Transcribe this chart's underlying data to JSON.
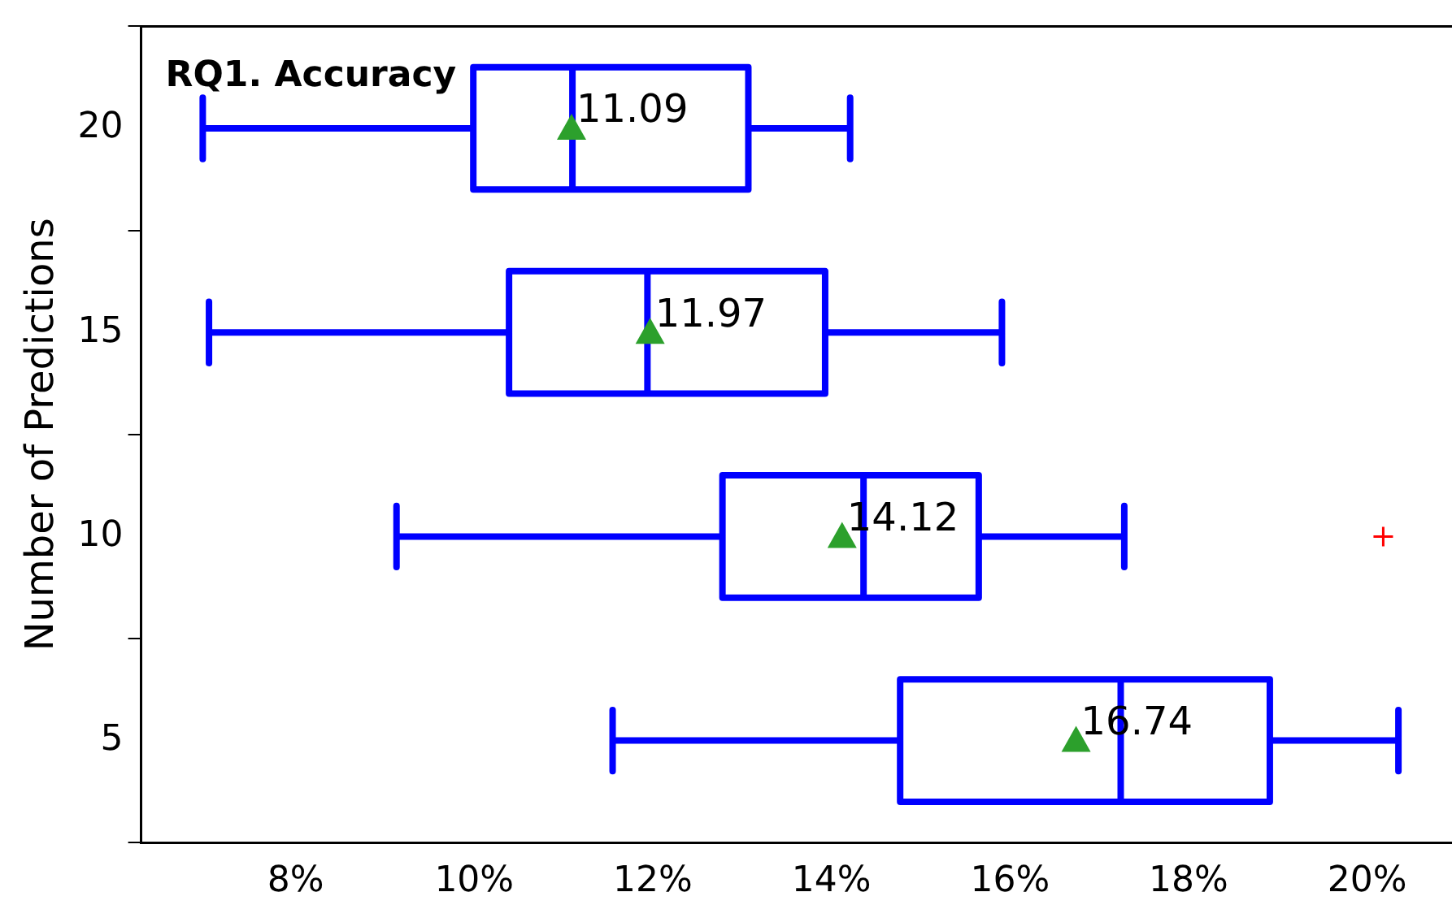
{
  "chart_data": {
    "type": "box",
    "orientation": "horizontal",
    "title": "RQ1. Accuracy",
    "ylabel": "Number of Predictions",
    "categories": [
      "20",
      "15",
      "10",
      "5"
    ],
    "xlim": [
      6.27,
      20.95
    ],
    "xticks": [
      {
        "value": 8,
        "label": "8%"
      },
      {
        "value": 10,
        "label": "10%"
      },
      {
        "value": 12,
        "label": "12%"
      },
      {
        "value": 14,
        "label": "14%"
      },
      {
        "value": 16,
        "label": "16%"
      },
      {
        "value": 18,
        "label": "18%"
      },
      {
        "value": 20,
        "label": "20%"
      }
    ],
    "grid": false,
    "legend": false,
    "series": [
      {
        "color": "#0000ff",
        "boxes": [
          {
            "low": 6.96,
            "q1": 9.99,
            "median": 11.1,
            "q3": 13.07,
            "high": 14.21,
            "mean": 11.09
          },
          {
            "low": 7.03,
            "q1": 10.39,
            "median": 11.94,
            "q3": 13.93,
            "high": 15.91,
            "mean": 11.97
          },
          {
            "low": 9.13,
            "q1": 12.78,
            "median": 14.36,
            "q3": 15.65,
            "high": 17.28,
            "mean": 14.12,
            "outliers": [
              20.18
            ]
          },
          {
            "low": 11.55,
            "q1": 14.77,
            "median": 17.24,
            "q3": 18.91,
            "high": 20.35,
            "mean": 16.74
          }
        ]
      }
    ],
    "annotations": [
      "11.09",
      "11.97",
      "14.12",
      "16.74"
    ]
  }
}
